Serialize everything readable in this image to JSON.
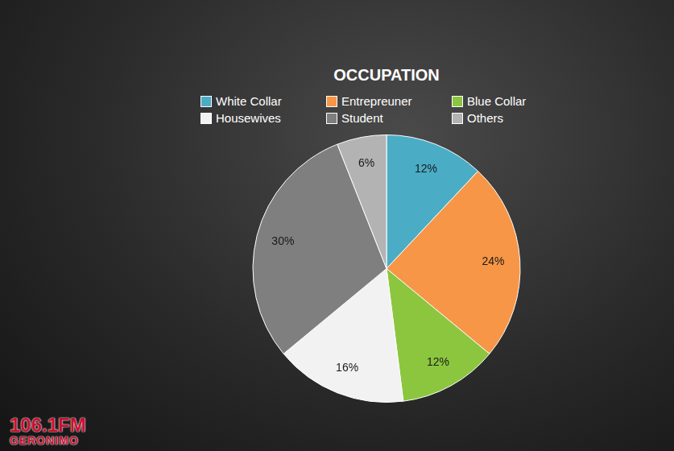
{
  "chart_data": {
    "type": "pie",
    "title": "OCCUPATION",
    "categories": [
      "White Collar",
      "Entrepreuner",
      "Blue Collar",
      "Housewives",
      "Student",
      "Others"
    ],
    "values": [
      12,
      24,
      12,
      16,
      30,
      6
    ],
    "value_labels": [
      "12%",
      "24%",
      "12%",
      "16%",
      "30%",
      "6%"
    ],
    "colors": [
      "#4bacc6",
      "#f79646",
      "#8cc63f",
      "#f2f2f2",
      "#7f7f7f",
      "#b3b3b3"
    ],
    "legend": "top",
    "data_labels": true,
    "annotations": [
      "106.1FM",
      "GERONIMO"
    ]
  }
}
